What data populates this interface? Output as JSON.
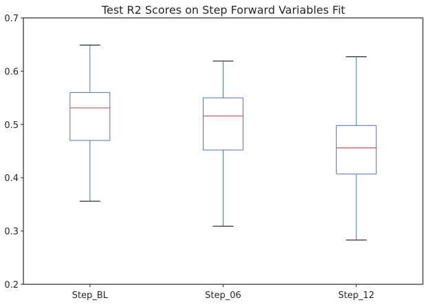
{
  "chart_data": {
    "type": "box",
    "title": "Test R2 Scores on Step Forward Variables Fit",
    "xlabel": "",
    "ylabel": "",
    "ylim": [
      0.2,
      0.7
    ],
    "yticks": [
      "0.2",
      "0.3",
      "0.4",
      "0.5",
      "0.6",
      "0.7"
    ],
    "grid": false,
    "categories": [
      "Step_BL",
      "Step_06",
      "Step_12"
    ],
    "boxes": [
      {
        "category": "Step_BL",
        "whisker_low": 0.356,
        "q1": 0.47,
        "median": 0.531,
        "q3": 0.56,
        "whisker_high": 0.649
      },
      {
        "category": "Step_06",
        "whisker_low": 0.309,
        "q1": 0.452,
        "median": 0.516,
        "q3": 0.55,
        "whisker_high": 0.619
      },
      {
        "category": "Step_12",
        "whisker_low": 0.283,
        "q1": 0.407,
        "median": 0.456,
        "q3": 0.498,
        "whisker_high": 0.627
      }
    ],
    "colors": {
      "box": "#4c72b0",
      "median": "#c44e52",
      "caps": "#000000",
      "axes": "#262626"
    }
  }
}
